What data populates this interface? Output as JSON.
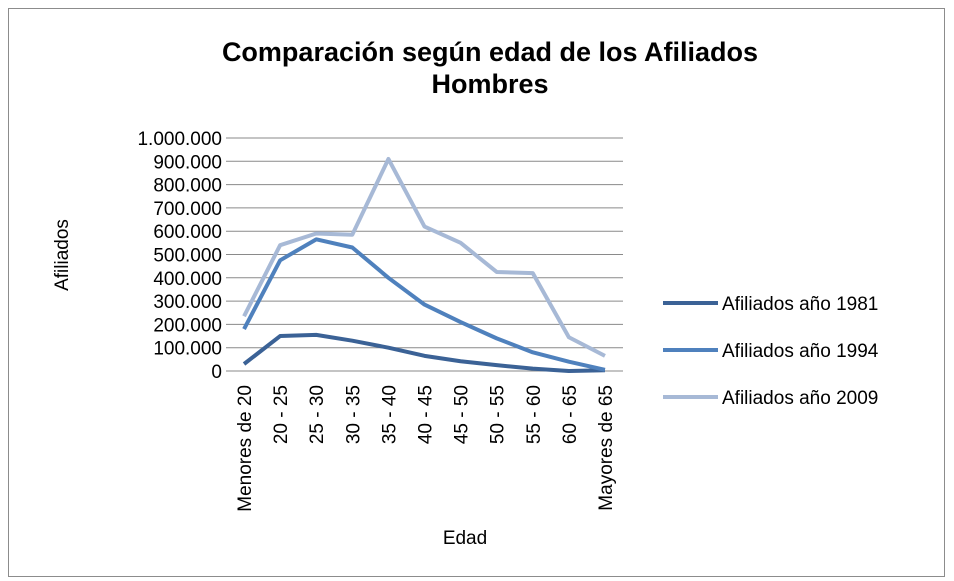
{
  "chart_data": {
    "type": "line",
    "title": "Comparación según edad de los Afiliados Hombres",
    "x_label": "Edad",
    "y_label": "Afiliados",
    "categories": [
      "Menores de 20",
      "20 - 25",
      "25 - 30",
      "30 - 35",
      "35 - 40",
      "40 - 45",
      "45 - 50",
      "50 - 55",
      "55 - 60",
      "60 - 65",
      "Mayores de 65"
    ],
    "series": [
      {
        "name": "Afiliados año 1981",
        "color": "#3b6296",
        "values": [
          30000,
          150000,
          155000,
          130000,
          100000,
          65000,
          42000,
          25000,
          10000,
          0,
          3000
        ]
      },
      {
        "name": "Afiliados año 1994",
        "color": "#4f81bd",
        "values": [
          180000,
          475000,
          565000,
          530000,
          400000,
          285000,
          210000,
          140000,
          80000,
          40000,
          5000
        ]
      },
      {
        "name": "Afiliados año 2009",
        "color": "#a7b9d6",
        "values": [
          235000,
          540000,
          590000,
          585000,
          910000,
          620000,
          550000,
          425000,
          420000,
          145000,
          65000
        ]
      }
    ],
    "ylim": [
      0,
      1000000
    ],
    "yticks": [
      0,
      {
        "value": 100000,
        "label": "100.000"
      },
      {
        "value": 200000,
        "label": "200.000"
      },
      {
        "value": 300000,
        "label": "300.000"
      },
      {
        "value": 400000,
        "label": "400.000"
      },
      {
        "value": 500000,
        "label": "500.000"
      },
      {
        "value": 600000,
        "label": "600.000"
      },
      {
        "value": 700000,
        "label": "700.000"
      },
      {
        "value": 800000,
        "label": "800.000"
      },
      {
        "value": 900000,
        "label": "900.000"
      },
      {
        "value": 1000000,
        "label": "1.000.000"
      }
    ],
    "grid": true,
    "legend": "right"
  }
}
